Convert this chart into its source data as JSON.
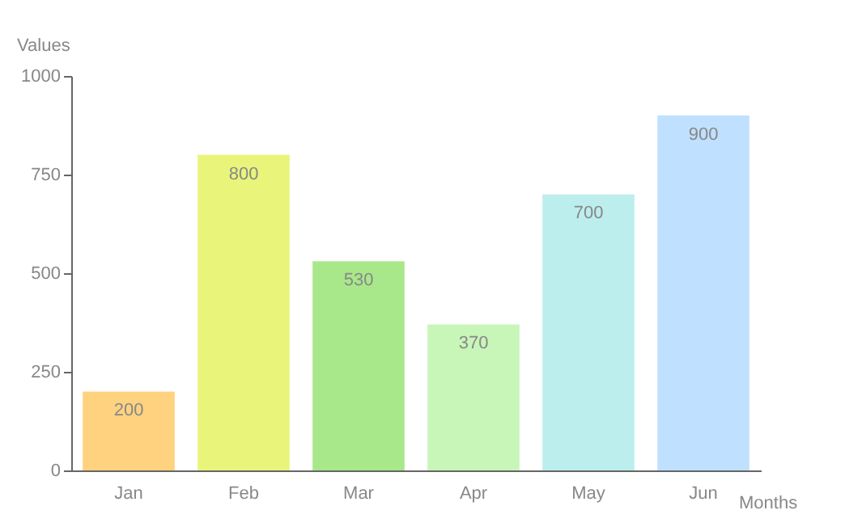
{
  "chart_data": {
    "type": "bar",
    "xlabel": "Months",
    "ylabel": "Values",
    "categories": [
      "Jan",
      "Feb",
      "Mar",
      "Apr",
      "May",
      "Jun"
    ],
    "values": [
      200,
      800,
      530,
      370,
      700,
      900
    ],
    "colors": [
      "#ffd27f",
      "#e8f57a",
      "#a8e88a",
      "#c8f5b8",
      "#bdeeee",
      "#c0e0ff"
    ],
    "ylim": [
      0,
      1000
    ],
    "yticks": [
      0,
      250,
      500,
      750,
      1000
    ],
    "grid": false,
    "data_labels": true
  }
}
